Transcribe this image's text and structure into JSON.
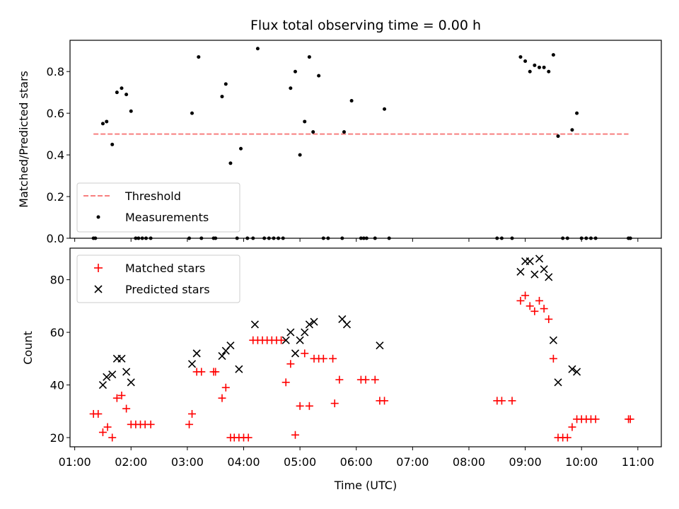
{
  "chart_data": [
    {
      "type": "scatter",
      "title": "Flux total observing time = 0.00 h",
      "ylabel": "Matched/Predicted stars",
      "xlim": [
        "00:55",
        "11:25"
      ],
      "ylim": [
        0,
        0.95
      ],
      "yticks": [
        "0.0",
        "0.2",
        "0.4",
        "0.6",
        "0.8"
      ],
      "ytick_values": [
        0,
        0.2,
        0.4,
        0.6,
        0.8
      ],
      "grid": false,
      "legend_position": "lower-left",
      "threshold": {
        "name": "Threshold",
        "value": 0.5,
        "x_start": "01:20",
        "x_end": "10:50",
        "color": "#f77f7f",
        "style": "dashed"
      },
      "series": [
        {
          "name": "Measurements",
          "color": "#000000",
          "marker": "dot",
          "points": [
            [
              "01:20",
              0
            ],
            [
              "01:22",
              0
            ],
            [
              "01:30",
              0.55
            ],
            [
              "01:34",
              0.56
            ],
            [
              "01:40",
              0.45
            ],
            [
              "01:45",
              0.7
            ],
            [
              "01:50",
              0.72
            ],
            [
              "01:55",
              0.69
            ],
            [
              "02:00",
              0.61
            ],
            [
              "02:05",
              0
            ],
            [
              "02:08",
              0
            ],
            [
              "02:12",
              0
            ],
            [
              "02:16",
              0
            ],
            [
              "02:21",
              0
            ],
            [
              "03:02",
              0
            ],
            [
              "03:05",
              0.6
            ],
            [
              "03:12",
              0.87
            ],
            [
              "03:15",
              0
            ],
            [
              "03:28",
              0
            ],
            [
              "03:30",
              0
            ],
            [
              "03:37",
              0.68
            ],
            [
              "03:41",
              0.74
            ],
            [
              "03:46",
              0.36
            ],
            [
              "03:53",
              0
            ],
            [
              "03:57",
              0.43
            ],
            [
              "04:04",
              0
            ],
            [
              "04:10",
              0
            ],
            [
              "04:15",
              0.91
            ],
            [
              "04:22",
              0
            ],
            [
              "04:27",
              0
            ],
            [
              "04:32",
              0
            ],
            [
              "04:37",
              0
            ],
            [
              "04:42",
              0
            ],
            [
              "04:50",
              0.72
            ],
            [
              "04:55",
              0.8
            ],
            [
              "05:00",
              0.4
            ],
            [
              "05:05",
              0.56
            ],
            [
              "05:10",
              0.87
            ],
            [
              "05:14",
              0.51
            ],
            [
              "05:20",
              0.78
            ],
            [
              "05:25",
              0
            ],
            [
              "05:30",
              0
            ],
            [
              "05:45",
              0
            ],
            [
              "05:47",
              0.51
            ],
            [
              "05:55",
              0.66
            ],
            [
              "06:05",
              0
            ],
            [
              "06:08",
              0
            ],
            [
              "06:11",
              0
            ],
            [
              "06:20",
              0
            ],
            [
              "06:30",
              0.62
            ],
            [
              "06:35",
              0
            ],
            [
              "08:30",
              0
            ],
            [
              "08:35",
              0
            ],
            [
              "08:46",
              0
            ],
            [
              "08:55",
              0.87
            ],
            [
              "09:00",
              0.85
            ],
            [
              "09:05",
              0.8
            ],
            [
              "09:10",
              0.83
            ],
            [
              "09:15",
              0.82
            ],
            [
              "09:20",
              0.82
            ],
            [
              "09:25",
              0.8
            ],
            [
              "09:30",
              0.88
            ],
            [
              "09:35",
              0.49
            ],
            [
              "09:40",
              0
            ],
            [
              "09:45",
              0
            ],
            [
              "09:50",
              0.52
            ],
            [
              "09:55",
              0.6
            ],
            [
              "10:00",
              0
            ],
            [
              "10:05",
              0
            ],
            [
              "10:10",
              0
            ],
            [
              "10:15",
              0
            ],
            [
              "10:50",
              0
            ],
            [
              "10:52",
              0
            ]
          ]
        }
      ]
    },
    {
      "type": "scatter",
      "xlabel": "Time (UTC)",
      "ylabel": "Count",
      "xlim": [
        "00:55",
        "11:25"
      ],
      "ylim": [
        16.5,
        92
      ],
      "xticks": [
        "01:00",
        "02:00",
        "03:00",
        "04:00",
        "05:00",
        "06:00",
        "07:00",
        "08:00",
        "09:00",
        "10:00",
        "11:00"
      ],
      "yticks": [
        "20",
        "40",
        "60",
        "80"
      ],
      "ytick_values": [
        20,
        40,
        60,
        80
      ],
      "grid": false,
      "legend_position": "upper-left",
      "series": [
        {
          "name": "Matched stars",
          "color": "#ff0000",
          "marker": "plus",
          "points": [
            [
              "01:20",
              29
            ],
            [
              "01:25",
              29
            ],
            [
              "01:30",
              22
            ],
            [
              "01:35",
              24
            ],
            [
              "01:40",
              20
            ],
            [
              "01:45",
              35
            ],
            [
              "01:50",
              36
            ],
            [
              "01:55",
              31
            ],
            [
              "02:00",
              25
            ],
            [
              "02:05",
              25
            ],
            [
              "02:10",
              25
            ],
            [
              "02:15",
              25
            ],
            [
              "02:21",
              25
            ],
            [
              "03:02",
              25
            ],
            [
              "03:05",
              29
            ],
            [
              "03:10",
              45
            ],
            [
              "03:15",
              45
            ],
            [
              "03:28",
              45
            ],
            [
              "03:30",
              45
            ],
            [
              "03:37",
              35
            ],
            [
              "03:41",
              39
            ],
            [
              "03:46",
              20
            ],
            [
              "03:50",
              20
            ],
            [
              "03:55",
              20
            ],
            [
              "04:00",
              20
            ],
            [
              "04:05",
              20
            ],
            [
              "04:10",
              57
            ],
            [
              "04:15",
              57
            ],
            [
              "04:20",
              57
            ],
            [
              "04:25",
              57
            ],
            [
              "04:30",
              57
            ],
            [
              "04:35",
              57
            ],
            [
              "04:40",
              57
            ],
            [
              "04:45",
              41
            ],
            [
              "04:50",
              48
            ],
            [
              "04:55",
              21
            ],
            [
              "05:00",
              32
            ],
            [
              "05:05",
              52
            ],
            [
              "05:10",
              32
            ],
            [
              "05:15",
              50
            ],
            [
              "05:20",
              50
            ],
            [
              "05:25",
              50
            ],
            [
              "05:35",
              50
            ],
            [
              "05:37",
              33
            ],
            [
              "05:42",
              42
            ],
            [
              "06:05",
              42
            ],
            [
              "06:10",
              42
            ],
            [
              "06:20",
              42
            ],
            [
              "06:25",
              34
            ],
            [
              "06:30",
              34
            ],
            [
              "08:30",
              34
            ],
            [
              "08:35",
              34
            ],
            [
              "08:46",
              34
            ],
            [
              "08:55",
              72
            ],
            [
              "09:00",
              74
            ],
            [
              "09:05",
              70
            ],
            [
              "09:10",
              68
            ],
            [
              "09:15",
              72
            ],
            [
              "09:20",
              69
            ],
            [
              "09:25",
              65
            ],
            [
              "09:30",
              50
            ],
            [
              "09:35",
              20
            ],
            [
              "09:40",
              20
            ],
            [
              "09:45",
              20
            ],
            [
              "09:50",
              24
            ],
            [
              "09:55",
              27
            ],
            [
              "10:00",
              27
            ],
            [
              "10:05",
              27
            ],
            [
              "10:10",
              27
            ],
            [
              "10:15",
              27
            ],
            [
              "10:50",
              27
            ],
            [
              "10:52",
              27
            ]
          ]
        },
        {
          "name": "Predicted stars",
          "color": "#000000",
          "marker": "x",
          "points": [
            [
              "01:30",
              40
            ],
            [
              "01:34",
              43
            ],
            [
              "01:40",
              44
            ],
            [
              "01:45",
              50
            ],
            [
              "01:50",
              50
            ],
            [
              "01:55",
              45
            ],
            [
              "02:00",
              41
            ],
            [
              "03:05",
              48
            ],
            [
              "03:10",
              52
            ],
            [
              "03:37",
              51
            ],
            [
              "03:41",
              53
            ],
            [
              "03:46",
              55
            ],
            [
              "03:55",
              46
            ],
            [
              "04:12",
              63
            ],
            [
              "04:45",
              57
            ],
            [
              "04:50",
              60
            ],
            [
              "04:55",
              52
            ],
            [
              "05:00",
              57
            ],
            [
              "05:05",
              60
            ],
            [
              "05:10",
              63
            ],
            [
              "05:15",
              64
            ],
            [
              "05:45",
              65
            ],
            [
              "05:50",
              63
            ],
            [
              "06:25",
              55
            ],
            [
              "08:55",
              83
            ],
            [
              "09:00",
              87
            ],
            [
              "09:05",
              87
            ],
            [
              "09:10",
              82
            ],
            [
              "09:15",
              88
            ],
            [
              "09:20",
              84
            ],
            [
              "09:25",
              81
            ],
            [
              "09:30",
              57
            ],
            [
              "09:35",
              41
            ],
            [
              "09:50",
              46
            ],
            [
              "09:55",
              45
            ]
          ]
        }
      ]
    }
  ]
}
